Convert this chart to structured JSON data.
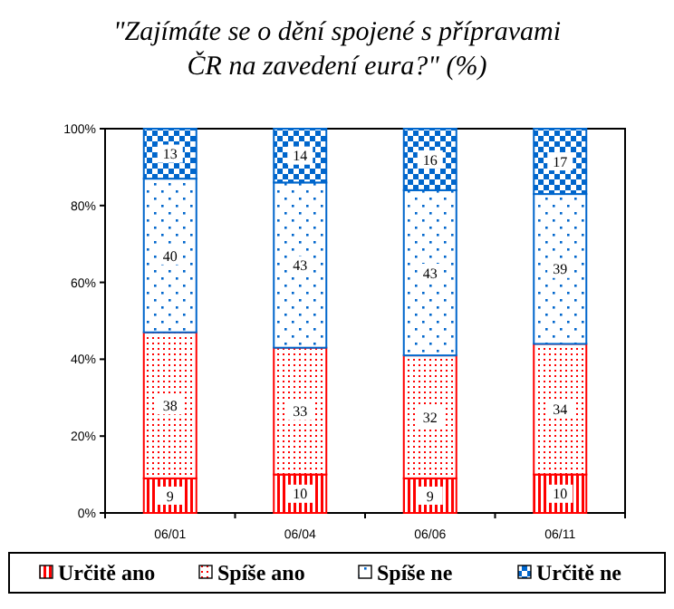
{
  "chart_data": {
    "type": "bar",
    "stacked": true,
    "title": "\"Zajímáte se o dění spojené s přípravami ČR na zavedení eura?\" (%)",
    "categories": [
      "06/01",
      "06/04",
      "06/06",
      "06/11"
    ],
    "series": [
      {
        "name": "Určitě ano",
        "color": "#ff0000",
        "values": [
          9,
          10,
          9,
          10
        ]
      },
      {
        "name": "Spíše ano",
        "color": "#ff0000",
        "values": [
          38,
          33,
          32,
          34
        ]
      },
      {
        "name": "Spíše ne",
        "color": "#0066cc",
        "values": [
          40,
          43,
          43,
          39
        ]
      },
      {
        "name": "Určitě ne",
        "color": "#0066cc",
        "values": [
          13,
          14,
          16,
          17
        ]
      }
    ],
    "ylim": [
      0,
      100
    ],
    "yticks": [
      {
        "value": 0,
        "label": "0%"
      },
      {
        "value": 20,
        "label": "20%"
      },
      {
        "value": 40,
        "label": "40%"
      },
      {
        "value": 60,
        "label": "60%"
      },
      {
        "value": 80,
        "label": "80%"
      },
      {
        "value": 100,
        "label": "100%"
      }
    ],
    "data_labels": true,
    "grid": false,
    "legend": "bottom"
  }
}
